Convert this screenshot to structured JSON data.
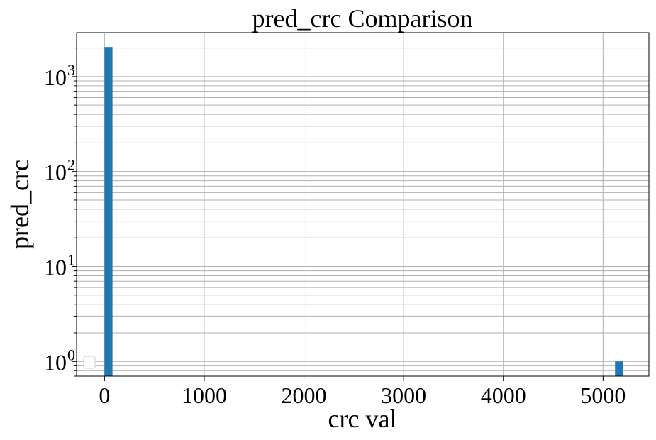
{
  "chart_data": {
    "type": "bar",
    "title": "pred_crc Comparison",
    "xlabel": "crc val",
    "ylabel": "pred_crc",
    "xlim": [
      -280,
      5460
    ],
    "ylim": [
      0.7,
      2900
    ],
    "y_scale": "log",
    "x_ticks": [
      "0",
      "1000",
      "2000",
      "3000",
      "4000",
      "5000"
    ],
    "x_tick_values": [
      0,
      1000,
      2000,
      3000,
      4000,
      5000
    ],
    "y_tick_exponents": [
      "0",
      "1",
      "2",
      "3"
    ],
    "y_tick_base": "10",
    "grid": true,
    "legend": {
      "placement": "lower-left",
      "entries": []
    },
    "bar_color": "#1f77b4",
    "bars": [
      {
        "x0": 0,
        "x1": 80,
        "value": 2050
      },
      {
        "x0": 5120,
        "x1": 5200,
        "value": 1
      }
    ]
  }
}
